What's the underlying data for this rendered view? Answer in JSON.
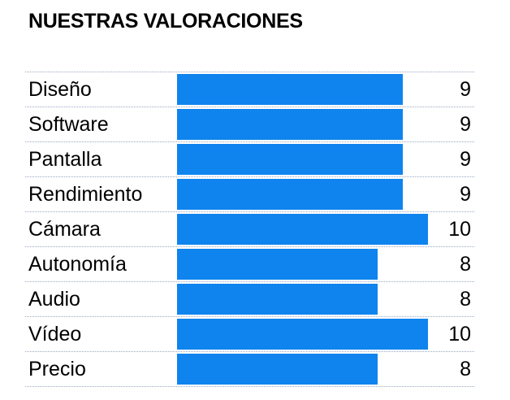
{
  "title": "NUESTRAS VALORACIONES",
  "colors": {
    "bar": "#0f84ee",
    "row_divider": "#9aa9c2"
  },
  "chart_data": {
    "type": "bar",
    "orientation": "horizontal",
    "title": "NUESTRAS VALORACIONES",
    "categories": [
      "Diseño",
      "Software",
      "Pantalla",
      "Rendimiento",
      "Cámara",
      "Autonomía",
      "Audio",
      "Vídeo",
      "Precio"
    ],
    "values": [
      9,
      9,
      9,
      9,
      10,
      8,
      8,
      10,
      8
    ],
    "xlim": [
      0,
      10
    ],
    "grid": false,
    "legend": "none"
  }
}
